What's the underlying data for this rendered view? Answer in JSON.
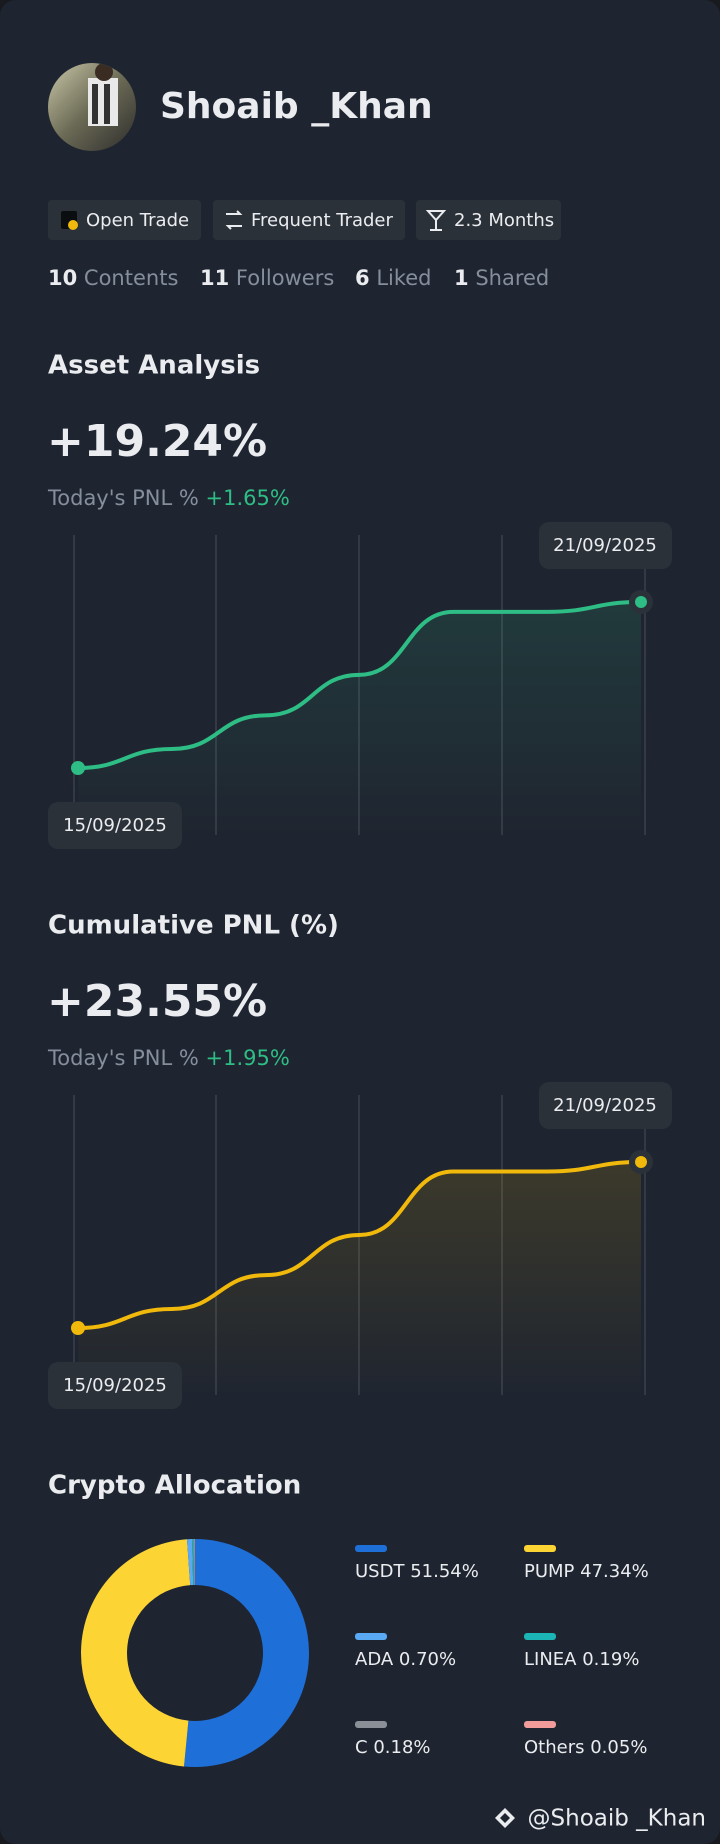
{
  "profile": {
    "name": "Shoaib _Khan",
    "tags": [
      "Open Trade",
      "Frequent Trader",
      "2.3 Months"
    ],
    "stats": [
      {
        "value": 10,
        "label": "Contents"
      },
      {
        "value": 11,
        "label": "Followers"
      },
      {
        "value": 6,
        "label": "Liked"
      },
      {
        "value": 1,
        "label": "Shared"
      }
    ]
  },
  "chart_data": [
    {
      "type": "line",
      "title": "Asset Analysis",
      "headline": "+19.24%",
      "subtitle": "Today's PNL %",
      "subtitle_value": "+1.65%",
      "categories": [
        "15/09/2025",
        null,
        null,
        null,
        null,
        null,
        "21/09/2025"
      ],
      "values": [
        0,
        2.2,
        6.1,
        10.8,
        18.1,
        18.1,
        19.24
      ],
      "color": "#2ebd85"
    },
    {
      "type": "line",
      "title": "Cumulative PNL (%)",
      "headline": "+23.55%",
      "subtitle": "Today's PNL %",
      "subtitle_value": "+1.95%",
      "categories": [
        "15/09/2025",
        null,
        null,
        null,
        null,
        null,
        "21/09/2025"
      ],
      "values": [
        0,
        2.7,
        7.5,
        13.2,
        22.2,
        22.2,
        23.55
      ],
      "color": "#f0b90b"
    },
    {
      "type": "pie",
      "title": "Crypto Allocation",
      "categories": [
        "USDT",
        "PUMP",
        "ADA",
        "LINEA",
        "C",
        "Others"
      ],
      "values": [
        51.54,
        47.34,
        0.7,
        0.19,
        0.18,
        0.05
      ],
      "value_labels": [
        "51.54%",
        "47.34%",
        "0.70%",
        "0.19%",
        "0.18%",
        "0.05%"
      ],
      "colors": [
        "#1f6fd8",
        "#fcd535",
        "#5aa9f5",
        "#1bb5b5",
        "#8a8f98",
        "#f29b9b"
      ]
    }
  ],
  "footer": "@Shoaib _Khan"
}
